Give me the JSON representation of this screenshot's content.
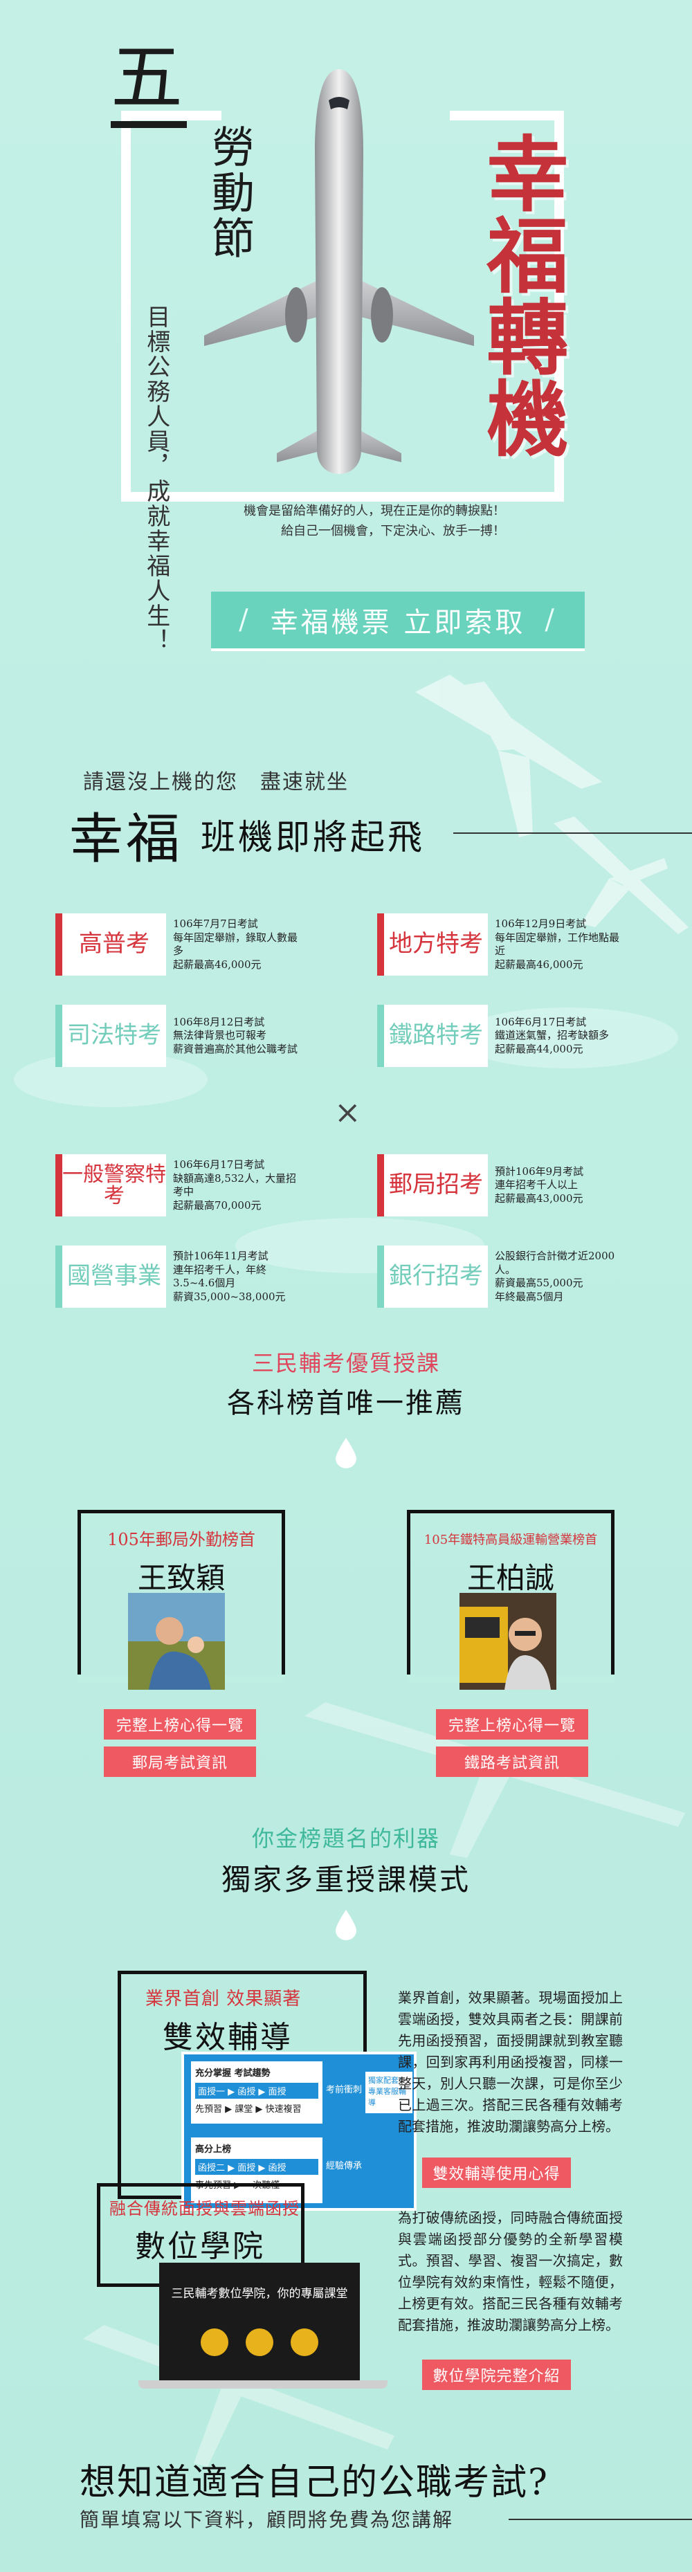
{
  "hero": {
    "five": "五",
    "one": "一",
    "labor": "勞動節",
    "happy": "幸福轉機",
    "target": "目標公務人員，成就幸福人生！",
    "chance_lines": [
      "機會是留給準備好的人，現在正是你的轉捩點！",
      "給自己一個機會，下定決心、放手一搏！"
    ],
    "cta_label": "幸福機票  立即索取",
    "cta_slash": "/"
  },
  "flight": {
    "subtitle": "請還沒上機的您　盡速就坐",
    "title_big": "幸福",
    "title_rest": "班機即將起飛",
    "times": "×",
    "exams": [
      {
        "name": "高普考",
        "lines": [
          "106年7月7日考試",
          "每年固定舉辦，錄取人數最多",
          "起薪最高46,000元"
        ]
      },
      {
        "name": "地方特考",
        "lines": [
          "106年12月9日考試",
          "每年固定舉辦，工作地點最近",
          "起薪最高46,000元"
        ]
      },
      {
        "name": "司法特考",
        "lines": [
          "106年8月12日考試",
          "無法律背景也可報考",
          "薪資普遍高於其他公職考試"
        ]
      },
      {
        "name": "鐵路特考",
        "lines": [
          "106年6月17日考試",
          "鐵道迷氣蟹，招考缺額多",
          "起薪最高44,000元"
        ]
      },
      {
        "name": "一般警察特考",
        "lines": [
          "106年6月17日考試",
          "缺額高達8,532人，大量招考中",
          "起薪最高70,000元"
        ]
      },
      {
        "name": "郵局招考",
        "lines": [
          "預計106年9月考試",
          "連年招考千人以上",
          "起薪最高43,000元"
        ]
      },
      {
        "name": "國營事業",
        "lines": [
          "預計106年11月考試",
          "連年招考千人，年終3.5~4.6個月",
          "薪資35,000~38,000元"
        ]
      },
      {
        "name": "銀行招考",
        "lines": [
          "公股銀行合計徵才近2000人。",
          "薪資最高55,000元",
          "年終最高5個月"
        ]
      }
    ]
  },
  "teachers": {
    "subtitle": "三民輔考優質授課",
    "title": "各科榜首唯一推薦",
    "items": [
      {
        "role": "105年郵局外勤榜首",
        "name": "王致穎",
        "btn1": "完整上榜心得一覽",
        "btn2": "郵局考試資訊"
      },
      {
        "role": "105年鐵特高員級運輸營業榜首",
        "name": "王柏誠",
        "btn1": "完整上榜心得一覽",
        "btn2": "鐵路考試資訊"
      }
    ]
  },
  "modes": {
    "subtitle": "你金榜題名的利器",
    "title": "獨家多重授課模式",
    "dual": {
      "tag": "業界首創 效果顯著",
      "name": "雙效輔導",
      "desc": "業界首創，效果顯著。現場面授加上雲端函授，雙效具兩者之長：開課前先用函授預習，面授開課就到教室聽課，回到家再利用函授複習，同樣一整天，別人只聽一次課，可是你至少已上過三次。搭配三民各種有效輔考配套措施，推波助瀾讓勢高分上榜。",
      "btn": "雙效輔導使用心得",
      "screen": {
        "box1_title": "充分掌握 考試趨勢",
        "box1_l1": "面授一 ▶ 函授 ▶ 面授",
        "box1_l2": "先預習 ▶ 課堂 ▶ 快速複習",
        "box1_right": "考前衝刺",
        "bubble": "獨家配套：專業客服輔導",
        "box2_title": "高分上榜",
        "box2_l1": "函授二 ▶ 面授 ▶ 函授",
        "box2_l2": "事先預習 ▶ 一次聽懂",
        "box2_right": "經驗傳承"
      }
    },
    "digital": {
      "tag": "融合傳統面授與雲端函授",
      "name": "數位學院",
      "desc": "為打破傳統函授，同時融合傳統面授與雲端函授部分優勢的全新學習模式。預習、學習、複習一次搞定，數位學院有效約束惰性，輕鬆不隨便，上榜更有效。搭配三民各種有效輔考配套措施，推波助瀾讓勢高分上榜。",
      "btn": "數位學院完整介紹",
      "screen_title": "三民輔考數位學院，你的專屬課堂"
    }
  },
  "footer": {
    "title": "想知道適合自己的公職考試?",
    "subtitle": "簡單填寫以下資料，顧問將免費為您講解"
  }
}
